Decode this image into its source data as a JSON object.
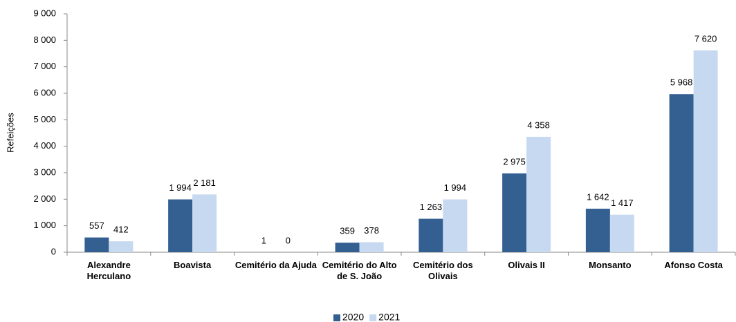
{
  "chart_data": {
    "type": "bar",
    "y_label": "Refeições",
    "categories": [
      "Alexandre Herculano",
      "Boavista",
      "Cemitério da Ajuda",
      "Cemitério do Alto de S. João",
      "Cemitério dos Olivais",
      "Olivais II",
      "Monsanto",
      "Afonso Costa"
    ],
    "series": [
      {
        "name": "2020",
        "color": "#335f91",
        "values": [
          557,
          1994,
          1,
          359,
          1263,
          2975,
          1642,
          5968
        ],
        "value_labels": [
          "557",
          "1 994",
          "1",
          "359",
          "1 263",
          "2 975",
          "1 642",
          "5 968"
        ]
      },
      {
        "name": "2021",
        "color": "#c6d9f0",
        "values": [
          412,
          2181,
          0,
          378,
          1994,
          4358,
          1417,
          7620
        ],
        "value_labels": [
          "412",
          "2 181",
          "0",
          "378",
          "1 994",
          "4 358",
          "1 417",
          "7 620"
        ]
      }
    ],
    "ylim": [
      0,
      9000
    ],
    "yticks": [
      0,
      {
        "value": 1000,
        "label": "1 000"
      },
      {
        "value": 2000,
        "label": "2 000"
      },
      {
        "value": 3000,
        "label": "3 000"
      },
      {
        "value": 4000,
        "label": "4 000"
      },
      {
        "value": 5000,
        "label": "5 000"
      },
      {
        "value": 6000,
        "label": "6 000"
      },
      {
        "value": 7000,
        "label": "7 000"
      },
      {
        "value": 8000,
        "label": "8 000"
      },
      {
        "value": 9000,
        "label": "9 000"
      }
    ],
    "grid": false,
    "legend": "bottom"
  }
}
